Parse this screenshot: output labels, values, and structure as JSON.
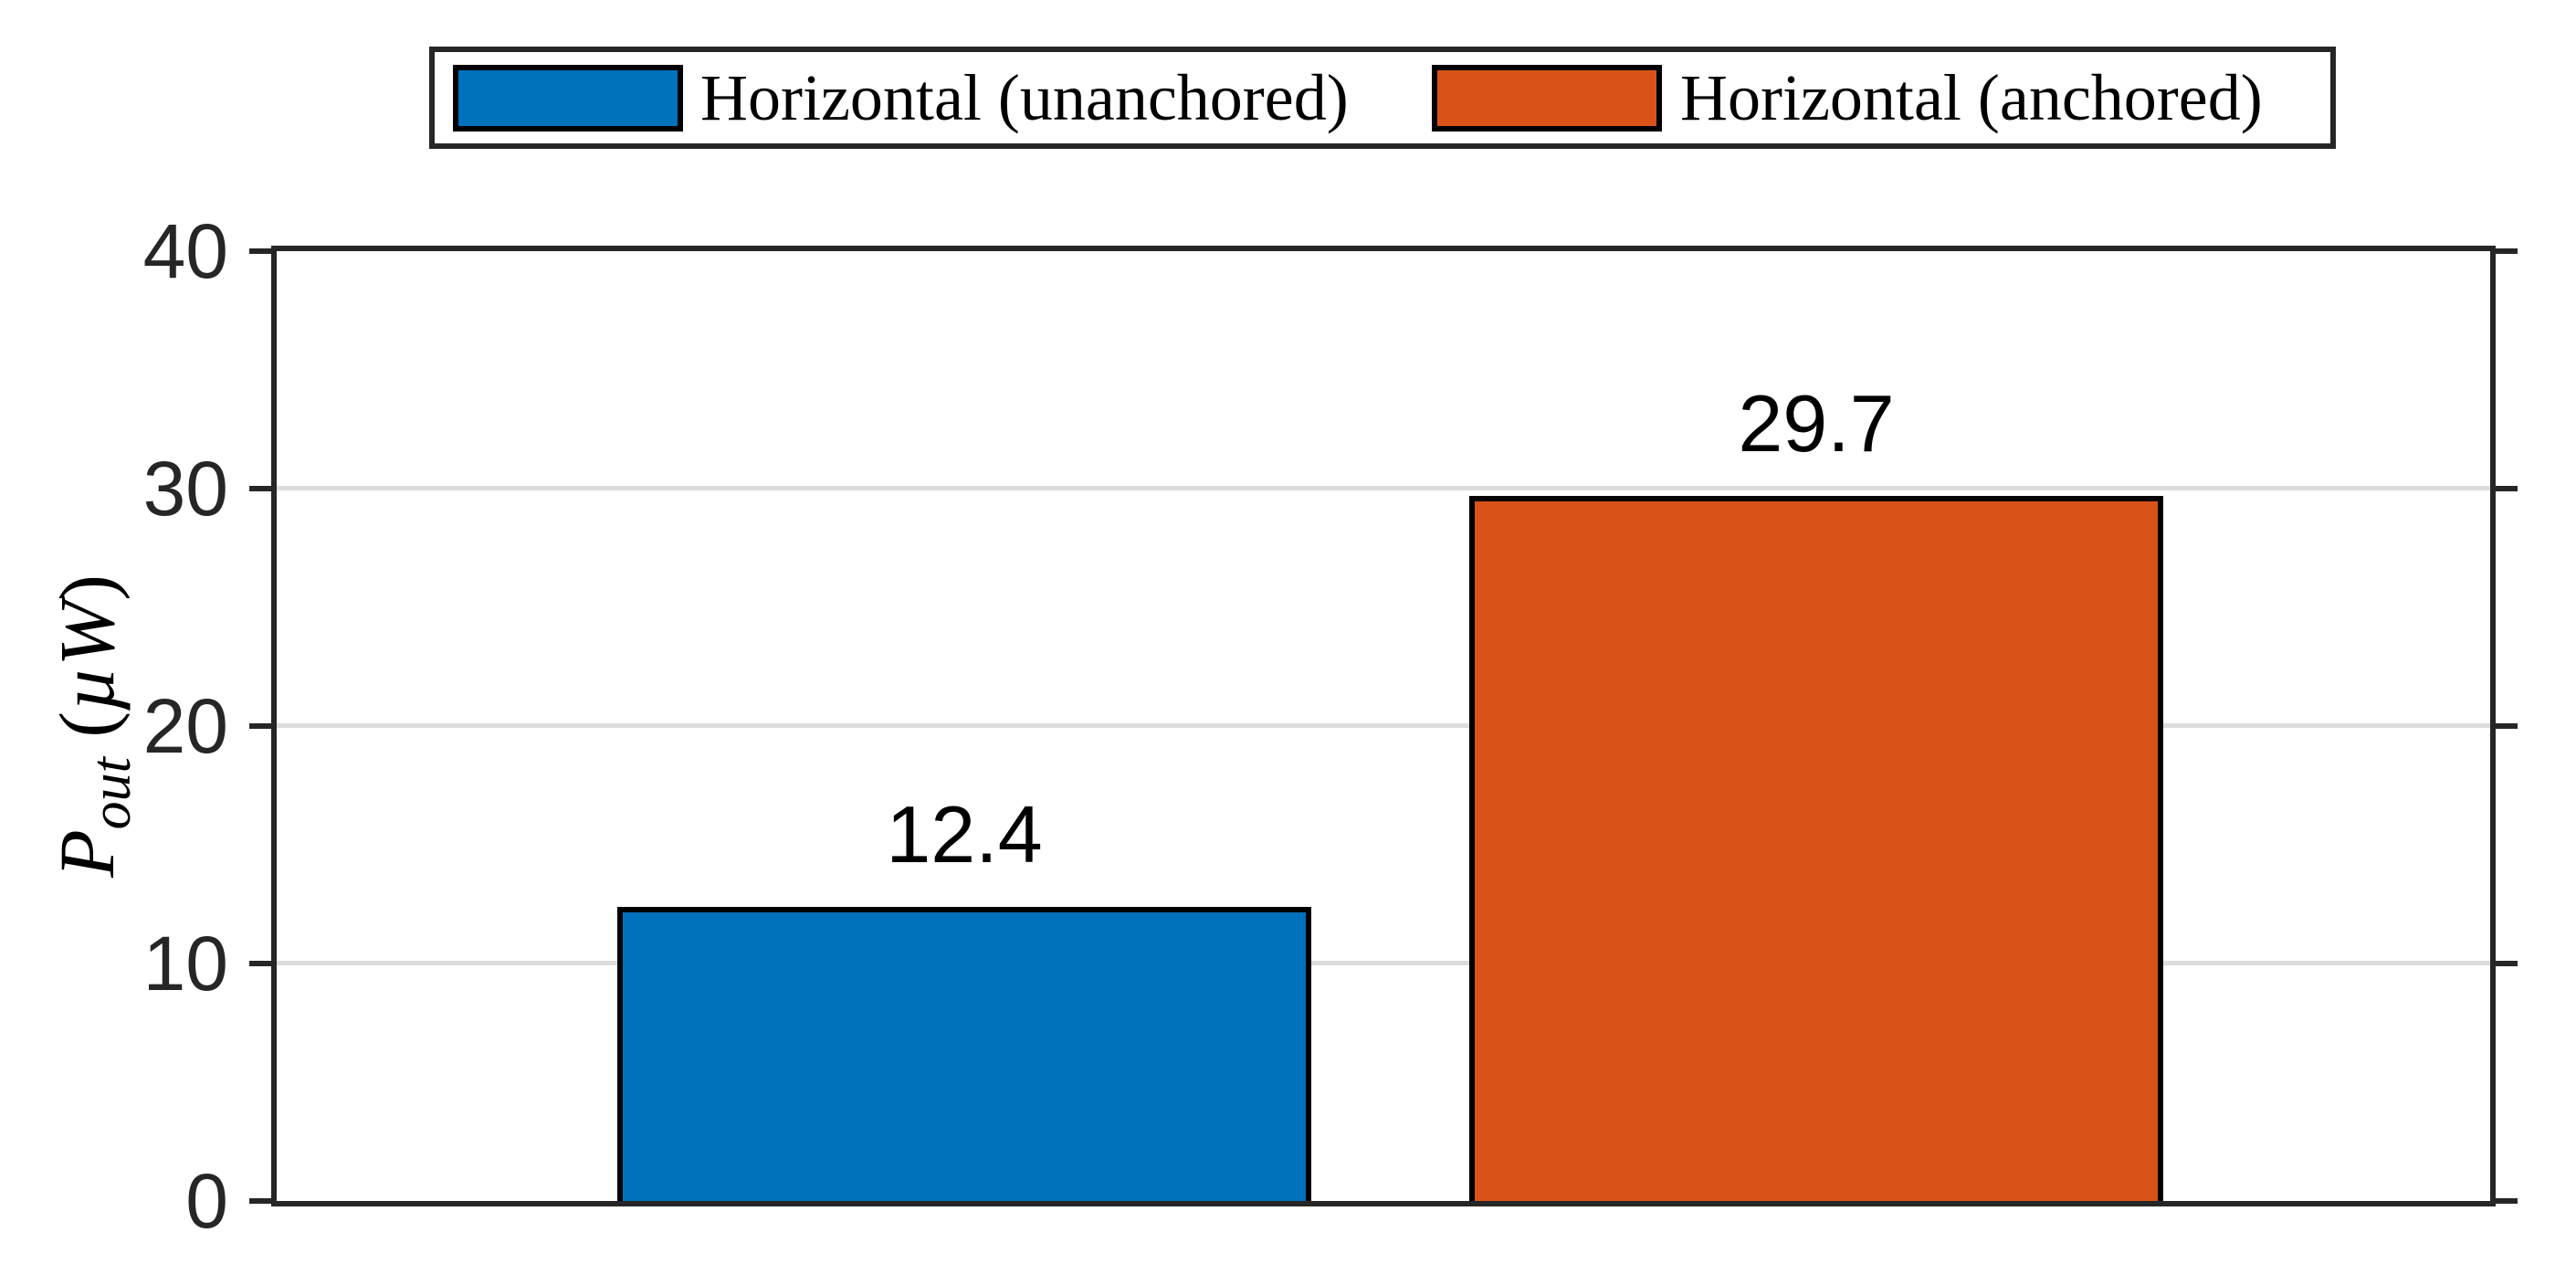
{
  "figure": {
    "background": "#ffffff",
    "axis_color": "#262626",
    "grid_color": "#dcdcdc",
    "bar_edge_color": "#000000"
  },
  "legend": {
    "items": [
      {
        "label": "Horizontal (unanchored)",
        "color": "#0072BD"
      },
      {
        "label": "Horizontal (anchored)",
        "color": "#D95319"
      }
    ]
  },
  "ylabel": {
    "symbol": "P",
    "subscript": "out",
    "unit_open": " (",
    "unit_mu": "µ",
    "unit_w": "W",
    "unit_close": ")"
  },
  "chart_data": {
    "type": "bar",
    "categories": [
      "Horizontal (unanchored)",
      "Horizontal (anchored)"
    ],
    "values": [
      12.4,
      29.7
    ],
    "value_labels": [
      "12.4",
      "29.7"
    ],
    "bar_colors": [
      "#0072BD",
      "#D95319"
    ],
    "title": "",
    "xlabel": "",
    "ylabel": "P_out (µW)",
    "ylim": [
      0,
      40
    ],
    "yticks": [
      0,
      10,
      20,
      30,
      40
    ],
    "grid": "horizontal gridlines at interior yticks",
    "legend_entries": [
      "Horizontal (unanchored)",
      "Horizontal (anchored)"
    ],
    "legend_position": "top center, boxed"
  }
}
